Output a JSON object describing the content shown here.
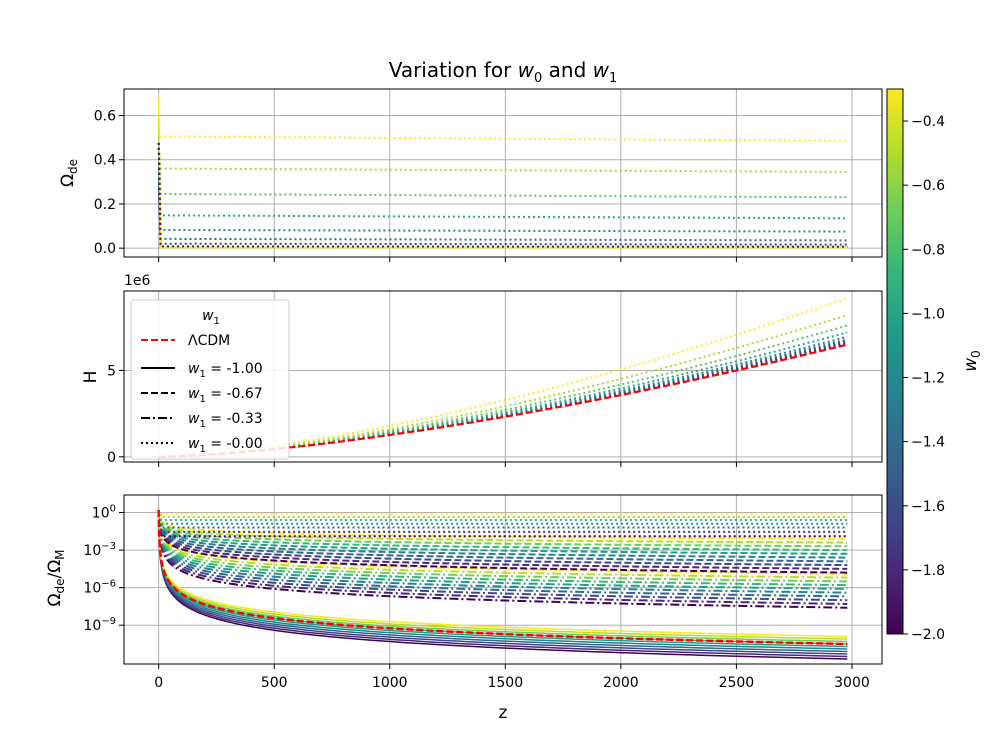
{
  "chart_data": {
    "type": "line",
    "title": "Variation for w₀ and w₁",
    "title_parts": {
      "pre": "Variation for ",
      "w0": "w",
      "w0_sub": "0",
      "mid": " and ",
      "w1": "w",
      "w1_sub": "1"
    },
    "xlabel": "z",
    "xlim": [
      -150,
      3130
    ],
    "x_ticks": [
      "0",
      "500",
      "1000",
      "1500",
      "2000",
      "2500",
      "3000"
    ],
    "x_tick_values": [
      0,
      500,
      1000,
      1500,
      2000,
      2500,
      3000
    ],
    "z_max": 2980,
    "w0_values": [
      -2.0,
      -1.8,
      -1.6,
      -1.4,
      -1.2,
      -1.0,
      -0.8,
      -0.6,
      -0.4,
      -0.3
    ],
    "w1_values": [
      -1.0,
      -0.67,
      -0.33,
      0.0
    ],
    "panels": [
      {
        "id": "omega_de",
        "ylabel": "Ω",
        "ylabel_sub": "de",
        "ylim": [
          -0.04,
          0.72
        ],
        "y_ticks": [
          "0.0",
          "0.2",
          "0.4",
          "0.6"
        ],
        "y_tick_values": [
          0.0,
          0.2,
          0.4,
          0.6
        ],
        "initial_peak": 0.68,
        "dotted_plateaus": [
          {
            "w0": -0.3,
            "start": 0.505,
            "end": 0.485
          },
          {
            "w0": -0.53,
            "start": 0.36,
            "end": 0.345
          },
          {
            "w0": -0.75,
            "start": 0.245,
            "end": 0.23
          },
          {
            "w0": -0.98,
            "start": 0.148,
            "end": 0.135
          },
          {
            "w0": -1.2,
            "start": 0.082,
            "end": 0.075
          },
          {
            "w0": -1.42,
            "start": 0.042,
            "end": 0.035
          },
          {
            "w0": -1.65,
            "start": 0.02,
            "end": 0.016
          },
          {
            "w0": -1.87,
            "start": 0.008,
            "end": 0.006
          }
        ]
      },
      {
        "id": "hubble",
        "ylabel": "H",
        "offset_text": "1e6",
        "ylim": [
          -0.3,
          9.6
        ],
        "y_ticks": [
          "0",
          "5"
        ],
        "y_tick_values": [
          0,
          5
        ],
        "lcdm_end": 6.5,
        "dotted_ends": [
          {
            "w0": -0.3,
            "end": 9.2
          },
          {
            "w0": -0.53,
            "end": 8.2
          },
          {
            "w0": -0.75,
            "end": 7.6
          },
          {
            "w0": -0.98,
            "end": 7.2
          },
          {
            "w0": -1.2,
            "end": 6.95
          },
          {
            "w0": -1.42,
            "end": 6.8
          },
          {
            "w0": -1.65,
            "end": 6.7
          },
          {
            "w0": -1.87,
            "end": 6.6
          }
        ]
      },
      {
        "id": "ratio",
        "ylabel": "Ω",
        "ylabel_sub": "de",
        "ylabel_mid": "/Ω",
        "ylabel_sub2": "M",
        "scale": "log",
        "ylim_exp": [
          -12.1,
          1.4
        ],
        "y_ticks": [
          {
            "base": "10",
            "exp": "0",
            "value": 0
          },
          {
            "base": "10",
            "exp": "−3",
            "value": -3
          },
          {
            "base": "10",
            "exp": "−6",
            "value": -6
          },
          {
            "base": "10",
            "exp": "−9",
            "value": -9
          }
        ],
        "lcdm_end_exp": -10.5,
        "solid_end_exp": [
          -11.7,
          -11.5,
          -11.3,
          -11.1,
          -10.9,
          -10.7,
          -10.5,
          -10.3,
          -10.1,
          -9.9
        ],
        "dashdot_end_exp": [
          -7.6,
          -7.3,
          -7.0,
          -6.7,
          -6.4,
          -6.1,
          -5.8,
          -5.5,
          -5.2,
          -4.9
        ],
        "dashed_end_exp": [
          -4.8,
          -4.5,
          -4.2,
          -3.9,
          -3.6,
          -3.3,
          -3.0,
          -2.7,
          -2.4,
          -2.1
        ],
        "dotted_level_exp": [
          -1.9,
          -1.55,
          -1.2,
          -0.9,
          -0.6,
          -0.35,
          -0.1
        ]
      }
    ],
    "legend": {
      "title": "w",
      "title_sub": "1",
      "placement": "upper-left of middle panel",
      "entries": [
        {
          "label": "ΛCDM",
          "style": "dashed",
          "color": "#ff0000"
        },
        {
          "label_pre": "w",
          "label_sub": "1",
          "label_post": " = -1.00",
          "style": "solid",
          "color": "#000000"
        },
        {
          "label_pre": "w",
          "label_sub": "1",
          "label_post": " = -0.67",
          "style": "dashed",
          "color": "#000000"
        },
        {
          "label_pre": "w",
          "label_sub": "1",
          "label_post": " = -0.33",
          "style": "dashdot",
          "color": "#000000"
        },
        {
          "label_pre": "w",
          "label_sub": "1",
          "label_post": " = -0.00",
          "style": "dotted",
          "color": "#000000"
        }
      ]
    },
    "colorbar": {
      "label": "w",
      "label_sub": "0",
      "range": [
        -2.0,
        -0.3
      ],
      "ticks": [
        "−0.4",
        "−0.6",
        "−0.8",
        "−1.0",
        "−1.2",
        "−1.4",
        "−1.6",
        "−1.8",
        "−2.0"
      ],
      "tick_values": [
        -0.4,
        -0.6,
        -0.8,
        -1.0,
        -1.2,
        -1.4,
        -1.6,
        -1.8,
        -2.0
      ],
      "colormap": "viridis",
      "colormap_stops": [
        "#440154",
        "#482878",
        "#3e4989",
        "#31688e",
        "#26828e",
        "#1f9e89",
        "#35b779",
        "#6ece58",
        "#b5de2b",
        "#fde725"
      ]
    },
    "lcdm_color": "#ff0000",
    "grid": true
  }
}
